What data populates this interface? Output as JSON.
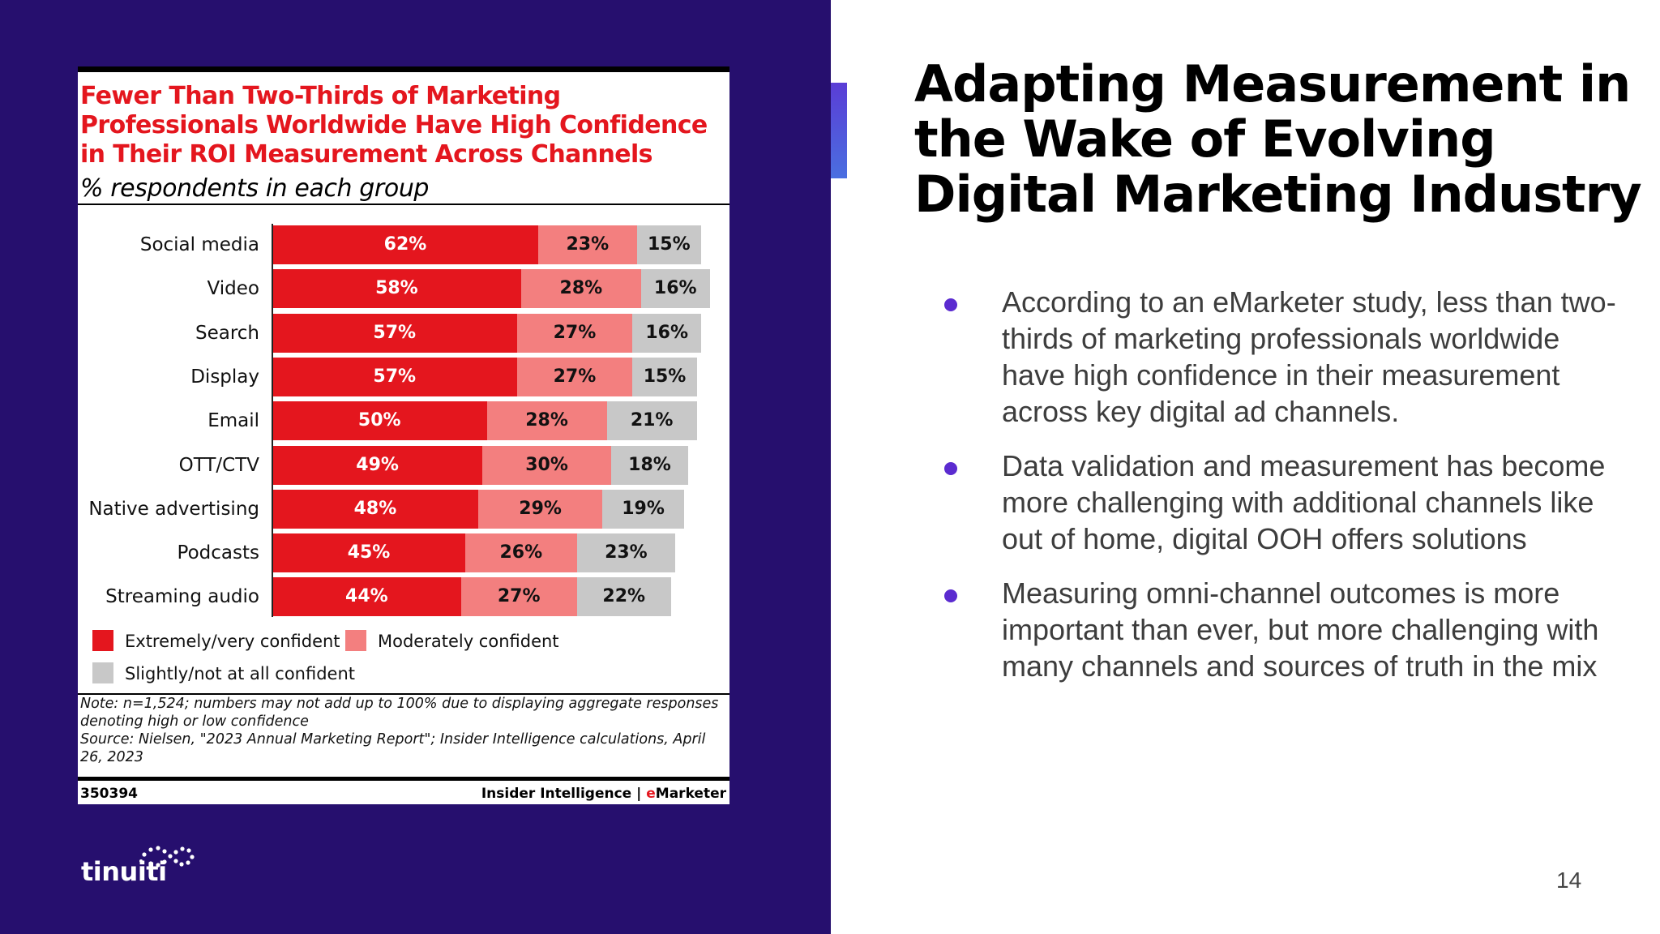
{
  "chart": {
    "title": "Fewer Than Two-Thirds of Marketing Professionals Worldwide Have High Confidence in Their ROI Measurement Across Channels",
    "subtitle": "% respondents in each group",
    "note": "Note: n=1,524; numbers may not add up to 100% due to displaying aggregate responses denoting high or low confidence",
    "source": "Source: Nielsen, \"2023 Annual Marketing Report\"; Insider Intelligence calculations, April 26, 2023",
    "chart_id": "350394",
    "brand_left": "Insider Intelligence",
    "brand_sep": "|",
    "brand_e": "e",
    "brand_right": "Marketer"
  },
  "chart_data": {
    "type": "bar",
    "orientation": "horizontal",
    "stacked": true,
    "categories": [
      "Social media",
      "Video",
      "Search",
      "Display",
      "Email",
      "OTT/CTV",
      "Native advertising",
      "Podcasts",
      "Streaming audio"
    ],
    "series": [
      {
        "name": "Extremely/very confident",
        "color": "#e4161e",
        "text_color": "#ffffff",
        "values": [
          62,
          58,
          57,
          57,
          50,
          49,
          48,
          45,
          44
        ],
        "labels": [
          "62%",
          "58%",
          "57%",
          "57%",
          "50%",
          "49%",
          "48%",
          "45%",
          "44%"
        ]
      },
      {
        "name": "Moderately confident",
        "color": "#f37f7f",
        "text_color": "#111111",
        "values": [
          23,
          28,
          27,
          27,
          28,
          30,
          29,
          26,
          27
        ],
        "labels": [
          "23%",
          "28%",
          "27%",
          "27%",
          "28%",
          "30%",
          "29%",
          "26%",
          "27%"
        ]
      },
      {
        "name": "Slightly/not at all confident",
        "color": "#c8c8c8",
        "text_color": "#111111",
        "values": [
          15,
          16,
          16,
          15,
          21,
          18,
          19,
          23,
          22
        ],
        "labels": [
          "15%",
          "16%",
          "16%",
          "15%",
          "21%",
          "18%",
          "19%",
          "23%",
          "22%"
        ]
      }
    ],
    "xlim": [
      0,
      100
    ],
    "legend_position": "bottom"
  },
  "slide": {
    "title": "Adapting Measurement in the Wake of Evolving Digital Marketing Industry",
    "bullets": [
      "According to an eMarketer study, less than two-thirds of marketing professionals worldwide have high confidence in their measurement across key digital ad channels.",
      "Data validation and measurement has become more challenging with additional channels like out of home, digital OOH offers solutions",
      "Measuring omni-channel outcomes is more important than ever, but more challenging with many channels and sources of truth in the mix"
    ],
    "page_number": "14"
  },
  "logo": {
    "text": "tinuiti"
  },
  "colors": {
    "panel": "#260f6e",
    "accent": "#5b2bd0",
    "brand_red": "#e4161e"
  }
}
